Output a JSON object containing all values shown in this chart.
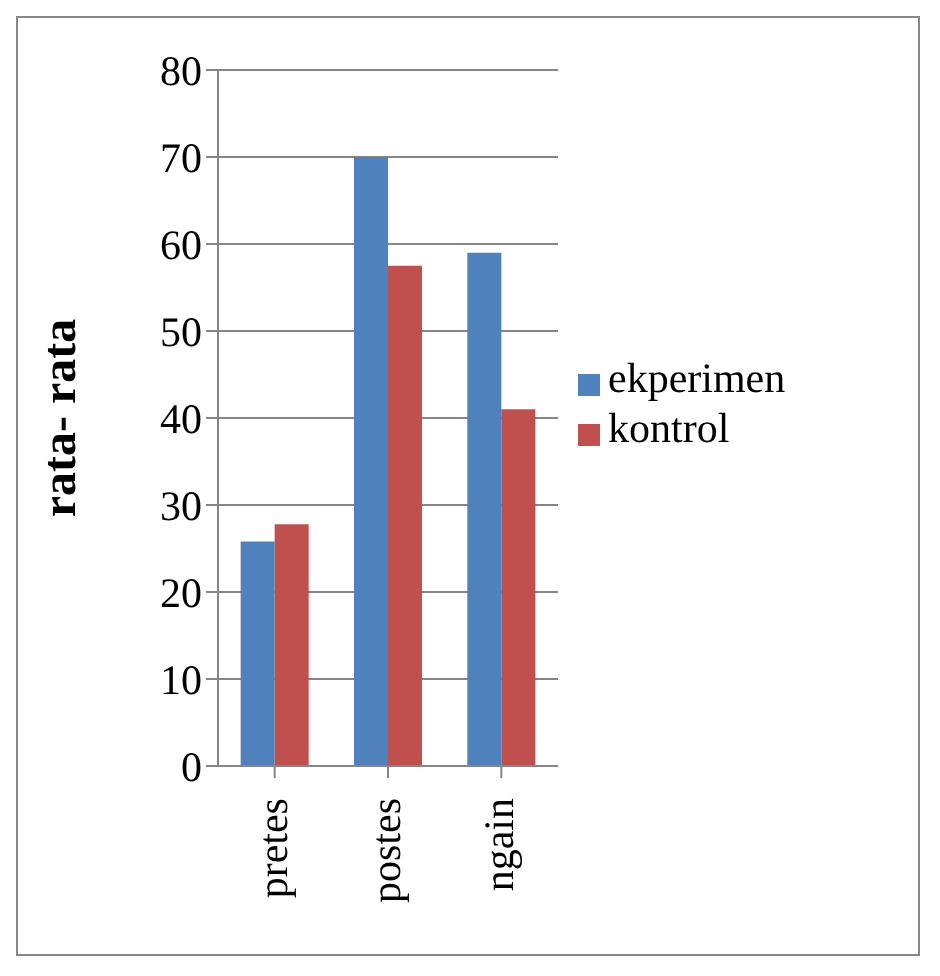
{
  "chart_data": {
    "type": "bar",
    "ylabel": "rata- rata",
    "categories": [
      "pretes",
      "postes",
      "ngain"
    ],
    "series": [
      {
        "name": "ekperimen",
        "color": "#4f81bd",
        "values": [
          25.8,
          70,
          59
        ]
      },
      {
        "name": "kontrol",
        "color": "#c0504d",
        "values": [
          27.8,
          57.5,
          41
        ]
      }
    ],
    "ylim": [
      0,
      80
    ],
    "yticks": [
      0,
      10,
      20,
      30,
      40,
      50,
      60,
      70,
      80
    ],
    "grid": "y",
    "legend": "right"
  }
}
